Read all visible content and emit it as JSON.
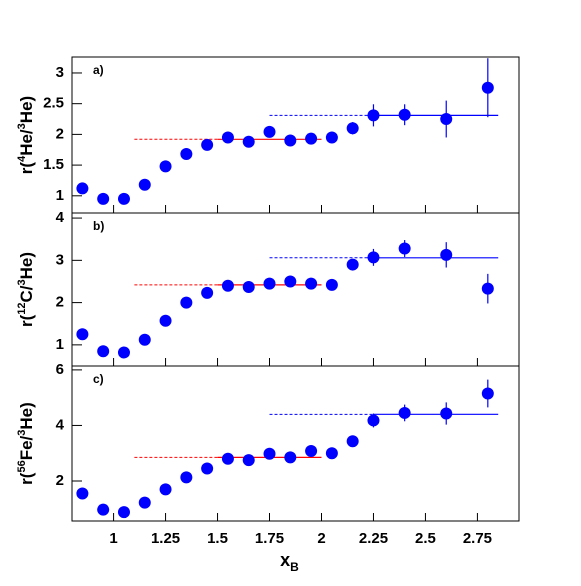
{
  "chart_data": [
    {
      "type": "scatter",
      "panel_label": "a)",
      "ylabel_parts": [
        {
          "text": "r("
        },
        {
          "text": "4",
          "sup": true
        },
        {
          "text": "He/"
        },
        {
          "text": "3",
          "sup": true
        },
        {
          "text": "He)"
        }
      ],
      "xlim": [
        0.8,
        2.95
      ],
      "ylim": [
        0.72,
        3.26
      ],
      "yticks": [
        1,
        1.5,
        2,
        2.5,
        3
      ],
      "x": [
        0.85,
        0.95,
        1.05,
        1.15,
        1.25,
        1.35,
        1.45,
        1.55,
        1.65,
        1.75,
        1.85,
        1.95,
        2.05,
        2.15,
        2.25,
        2.4,
        2.6,
        2.8
      ],
      "series": [
        {
          "color": "#0000ff",
          "values": [
            1.12,
            0.95,
            0.95,
            1.18,
            1.48,
            1.68,
            1.83,
            1.95,
            1.88,
            2.04,
            1.9,
            1.93,
            1.95,
            2.1,
            2.31,
            2.32,
            2.25,
            2.76
          ],
          "errors": [
            0.04,
            0.04,
            0.04,
            0.04,
            0.04,
            0.04,
            0.04,
            0.05,
            0.05,
            0.05,
            0.05,
            0.05,
            0.06,
            0.1,
            0.18,
            0.17,
            0.3,
            0.48
          ]
        }
      ],
      "fits": [
        {
          "color": "#ff0000",
          "level": 1.92,
          "dash_x": [
            1.1,
            1.5
          ],
          "solid_x": [
            1.5,
            2.0
          ]
        },
        {
          "color": "#0000ff",
          "level": 2.31,
          "dash_x": [
            1.75,
            2.25
          ],
          "solid_x": [
            2.25,
            2.85
          ]
        }
      ]
    },
    {
      "type": "scatter",
      "panel_label": "b)",
      "ylabel_parts": [
        {
          "text": "r("
        },
        {
          "text": "12",
          "sup": true
        },
        {
          "text": "C/"
        },
        {
          "text": "3",
          "sup": true
        },
        {
          "text": "He)"
        }
      ],
      "xlim": [
        0.8,
        2.95
      ],
      "ylim": [
        0.5,
        4.12
      ],
      "yticks": [
        1,
        2,
        3,
        4
      ],
      "x": [
        0.85,
        0.95,
        1.05,
        1.15,
        1.25,
        1.35,
        1.45,
        1.55,
        1.65,
        1.75,
        1.85,
        1.95,
        2.05,
        2.15,
        2.25,
        2.4,
        2.6,
        2.8
      ],
      "series": [
        {
          "color": "#0000ff",
          "values": [
            1.25,
            0.85,
            0.82,
            1.12,
            1.57,
            2.0,
            2.23,
            2.4,
            2.37,
            2.45,
            2.5,
            2.45,
            2.42,
            2.9,
            3.07,
            3.28,
            3.13,
            2.33
          ],
          "errors": [
            0.05,
            0.05,
            0.05,
            0.05,
            0.05,
            0.05,
            0.05,
            0.06,
            0.06,
            0.06,
            0.06,
            0.06,
            0.07,
            0.12,
            0.2,
            0.2,
            0.3,
            0.35
          ]
        }
      ],
      "fits": [
        {
          "color": "#ff0000",
          "level": 2.42,
          "dash_x": [
            1.1,
            1.5
          ],
          "solid_x": [
            1.5,
            2.0
          ]
        },
        {
          "color": "#0000ff",
          "level": 3.06,
          "dash_x": [
            1.75,
            2.25
          ],
          "solid_x": [
            2.25,
            2.85
          ]
        }
      ]
    },
    {
      "type": "scatter",
      "panel_label": "c)",
      "ylabel_parts": [
        {
          "text": "r("
        },
        {
          "text": "56",
          "sup": true
        },
        {
          "text": "Fe/"
        },
        {
          "text": "3",
          "sup": true
        },
        {
          "text": "He)"
        }
      ],
      "xlim": [
        0.8,
        2.95
      ],
      "ylim": [
        0.56,
        6.14
      ],
      "yticks": [
        2,
        4,
        6
      ],
      "xticks": [
        1,
        1.25,
        1.5,
        1.75,
        2,
        2.25,
        2.5,
        2.75
      ],
      "xlabel": "x",
      "xlabel_sub": "B",
      "x": [
        0.85,
        0.95,
        1.05,
        1.15,
        1.25,
        1.35,
        1.45,
        1.55,
        1.65,
        1.75,
        1.85,
        1.95,
        2.05,
        2.15,
        2.25,
        2.4,
        2.6,
        2.8
      ],
      "series": [
        {
          "color": "#0000ff",
          "values": [
            1.55,
            0.97,
            0.88,
            1.22,
            1.7,
            2.13,
            2.45,
            2.8,
            2.75,
            2.98,
            2.85,
            3.08,
            3.0,
            3.43,
            4.18,
            4.45,
            4.43,
            5.15
          ],
          "errors": [
            0.08,
            0.08,
            0.08,
            0.08,
            0.08,
            0.08,
            0.08,
            0.1,
            0.1,
            0.1,
            0.1,
            0.1,
            0.1,
            0.12,
            0.25,
            0.3,
            0.4,
            0.5
          ]
        }
      ],
      "fits": [
        {
          "color": "#ff0000",
          "level": 2.85,
          "dash_x": [
            1.1,
            1.5
          ],
          "solid_x": [
            1.5,
            2.0
          ]
        },
        {
          "color": "#0000ff",
          "level": 4.4,
          "dash_x": [
            1.75,
            2.25
          ],
          "solid_x": [
            2.25,
            2.85
          ]
        }
      ]
    }
  ]
}
